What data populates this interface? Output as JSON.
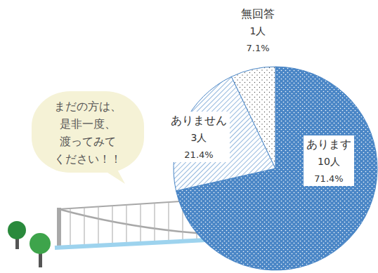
{
  "chart_data": {
    "type": "pie",
    "categories": [
      "あります",
      "ありません",
      "無回答"
    ],
    "values": [
      71.4,
      21.4,
      7.1
    ],
    "value_labels": [
      "71.4%",
      "21.4%",
      "7.1%"
    ],
    "count_labels": [
      "10人",
      "3人",
      "1人"
    ],
    "colors": [
      "#4a86c6",
      "#ffffff",
      "#ffffff"
    ],
    "data_labels": true,
    "annotation": [
      "まだの方は、",
      "是非一度、",
      "渡ってみて",
      "ください！！"
    ]
  }
}
